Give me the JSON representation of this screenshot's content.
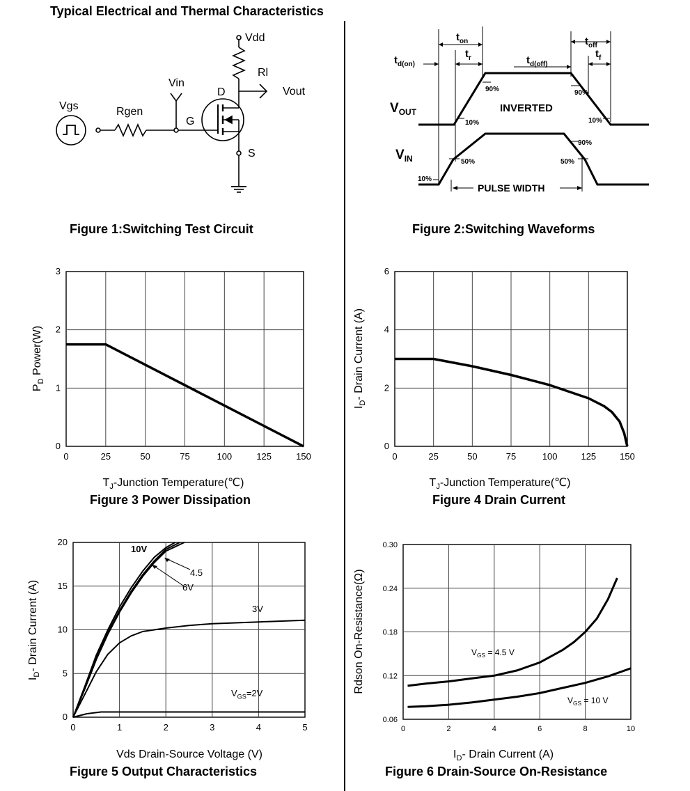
{
  "page": {
    "title": "Typical Electrical and Thermal Characteristics"
  },
  "fig1": {
    "caption": "Figure 1:Switching Test Circuit",
    "labels": {
      "vdd": "Vdd",
      "rl": "Rl",
      "vin": "Vin",
      "vout": "Vout",
      "d": "D",
      "g": "G",
      "s": "S",
      "vgs": "Vgs",
      "rgen": "Rgen"
    }
  },
  "fig2": {
    "caption": "Figure 2:Switching Waveforms",
    "labels": {
      "ton": "t",
      "ton_sub": "on",
      "tr": "t",
      "tr_sub": "r",
      "td_on": "t",
      "td_on_sub": "d(on)",
      "td_off": "t",
      "td_off_sub": "d(off)",
      "toff": "t",
      "toff_sub": "off",
      "tf": "t",
      "tf_sub": "f",
      "vout": "V",
      "vout_sub": "OUT",
      "vin": "V",
      "vin_sub": "IN",
      "inverted": "INVERTED",
      "pulse_width": "PULSE WIDTH",
      "p90_left": "90%",
      "p90_right": "90%",
      "p10_left": "10%",
      "p10_right": "10%",
      "p90_in": "90%",
      "p50_left": "50%",
      "p50_right": "50%",
      "p10_in": "10%"
    }
  },
  "chart_data": [
    {
      "id": "fig3",
      "type": "line",
      "caption": "Figure 3 Power Dissipation",
      "xlabel": "T",
      "xlabel_sub": "J",
      "xlabel_rest": "-Junction Temperature(℃)",
      "ylabel": "P",
      "ylabel_sub": "D",
      "ylabel_rest": "  Power(W)",
      "xlim": [
        0,
        150
      ],
      "ylim": [
        0,
        3
      ],
      "xticks": [
        "0",
        "25",
        "50",
        "75",
        "100",
        "125",
        "150"
      ],
      "yticks": [
        "0",
        "1",
        "2",
        "3"
      ],
      "series": [
        {
          "points": [
            [
              0,
              1.75
            ],
            [
              25,
              1.75
            ],
            [
              150,
              0
            ]
          ]
        }
      ]
    },
    {
      "id": "fig4",
      "type": "line",
      "caption": "Figure 4 Drain Current",
      "xlabel": "T",
      "xlabel_sub": "J",
      "xlabel_rest": "-Junction Temperature(℃)",
      "ylabel": "I",
      "ylabel_sub": "D",
      "ylabel_rest": "- Drain Current (A)",
      "xlim": [
        0,
        150
      ],
      "ylim": [
        0,
        6
      ],
      "xticks": [
        "0",
        "25",
        "50",
        "75",
        "100",
        "125",
        "150"
      ],
      "yticks": [
        "0",
        "2",
        "4",
        "6"
      ],
      "series": [
        {
          "points": [
            [
              0,
              3.0
            ],
            [
              25,
              3.0
            ],
            [
              50,
              2.75
            ],
            [
              75,
              2.45
            ],
            [
              100,
              2.1
            ],
            [
              125,
              1.65
            ],
            [
              135,
              1.38
            ],
            [
              140,
              1.18
            ],
            [
              145,
              0.85
            ],
            [
              148,
              0.45
            ],
            [
              149.5,
              0.1
            ],
            [
              150,
              0
            ]
          ]
        }
      ]
    },
    {
      "id": "fig5",
      "type": "line",
      "caption": "Figure 5 Output Characteristics",
      "xlabel": "Vds Drain-Source Voltage (V)",
      "ylabel": "I",
      "ylabel_sub": "D",
      "ylabel_rest": "- Drain Current (A)",
      "xlim": [
        0,
        5
      ],
      "ylim": [
        0,
        20
      ],
      "xticks": [
        "0",
        "1",
        "2",
        "3",
        "4",
        "5"
      ],
      "yticks": [
        "0",
        "5",
        "10",
        "15",
        "20"
      ],
      "series": [
        {
          "name": "10V",
          "points": [
            [
              0,
              0
            ],
            [
              0.25,
              3.5
            ],
            [
              0.5,
              7.1
            ],
            [
              0.75,
              10.0
            ],
            [
              1.0,
              12.6
            ],
            [
              1.25,
              14.8
            ],
            [
              1.5,
              16.7
            ],
            [
              1.75,
              18.3
            ],
            [
              2.0,
              19.4
            ],
            [
              2.2,
              20.0
            ]
          ]
        },
        {
          "name": "4.5",
          "points": [
            [
              0,
              0
            ],
            [
              0.25,
              3.3
            ],
            [
              0.5,
              6.8
            ],
            [
              0.75,
              9.7
            ],
            [
              1.0,
              12.2
            ],
            [
              1.25,
              14.4
            ],
            [
              1.5,
              16.3
            ],
            [
              1.75,
              17.9
            ],
            [
              2.0,
              19.2
            ],
            [
              2.3,
              20.0
            ]
          ]
        },
        {
          "name": "6V",
          "points": [
            [
              0,
              0
            ],
            [
              0.25,
              3.2
            ],
            [
              0.5,
              6.6
            ],
            [
              0.75,
              9.5
            ],
            [
              1.0,
              12.0
            ],
            [
              1.25,
              14.2
            ],
            [
              1.5,
              16.1
            ],
            [
              1.75,
              17.7
            ],
            [
              2.0,
              19.0
            ],
            [
              2.4,
              20.0
            ]
          ]
        },
        {
          "name": "3V",
          "points": [
            [
              0,
              0
            ],
            [
              0.25,
              2.6
            ],
            [
              0.5,
              5.2
            ],
            [
              0.75,
              7.2
            ],
            [
              1.0,
              8.5
            ],
            [
              1.25,
              9.3
            ],
            [
              1.5,
              9.8
            ],
            [
              2.0,
              10.2
            ],
            [
              2.5,
              10.5
            ],
            [
              3.0,
              10.7
            ],
            [
              4.0,
              10.9
            ],
            [
              5.0,
              11.1
            ]
          ]
        },
        {
          "name": "VGS=2V",
          "points": [
            [
              0,
              0
            ],
            [
              0.3,
              0.4
            ],
            [
              0.6,
              0.6
            ],
            [
              1.0,
              0.6
            ],
            [
              5.0,
              0.6
            ]
          ]
        }
      ],
      "annotations": {
        "l10v": "10V",
        "l45": "4.5",
        "l6v": "6V",
        "l3v": "3V",
        "l2v_main": "V",
        "l2v_sub": "GS",
        "l2v_rest": "=2V"
      }
    },
    {
      "id": "fig6",
      "type": "line",
      "caption": "Figure 6 Drain-Source On-Resistance",
      "xlabel": "I",
      "xlabel_sub": "D",
      "xlabel_rest": "- Drain Current (A)",
      "ylabel": "Rdson On-Resistance(Ω)",
      "xlim": [
        0,
        10
      ],
      "ylim": [
        0.06,
        0.3
      ],
      "xticks": [
        "0",
        "2",
        "4",
        "6",
        "8",
        "10"
      ],
      "yticks": [
        "0.06",
        "0.12",
        "0.18",
        "0.24",
        "0.30"
      ],
      "series": [
        {
          "name": "VGS = 4.5 V",
          "points": [
            [
              0.2,
              0.106
            ],
            [
              1,
              0.109
            ],
            [
              2,
              0.112
            ],
            [
              3,
              0.116
            ],
            [
              4,
              0.12
            ],
            [
              5,
              0.127
            ],
            [
              6,
              0.138
            ],
            [
              7,
              0.155
            ],
            [
              7.5,
              0.166
            ],
            [
              8,
              0.18
            ],
            [
              8.5,
              0.198
            ],
            [
              9,
              0.225
            ],
            [
              9.4,
              0.254
            ]
          ]
        },
        {
          "name": "VGS = 10 V",
          "points": [
            [
              0.2,
              0.077
            ],
            [
              1,
              0.078
            ],
            [
              2,
              0.08
            ],
            [
              3,
              0.083
            ],
            [
              4,
              0.087
            ],
            [
              5,
              0.091
            ],
            [
              6,
              0.096
            ],
            [
              7,
              0.103
            ],
            [
              8,
              0.11
            ],
            [
              9,
              0.119
            ],
            [
              10,
              0.13
            ]
          ]
        }
      ],
      "annotations": {
        "l45_main": "V",
        "l45_sub": "GS",
        "l45_rest": " = 4.5 V",
        "l10_main": "V",
        "l10_sub": "GS",
        "l10_rest": " = 10 V"
      }
    }
  ]
}
